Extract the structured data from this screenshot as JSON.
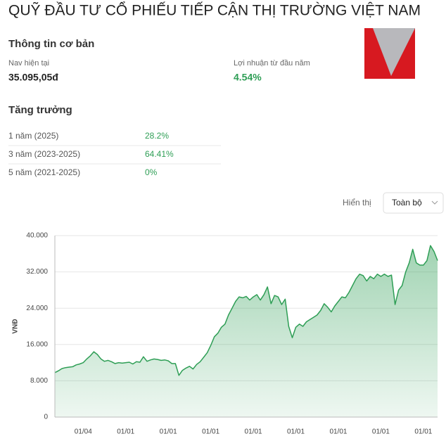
{
  "header": {
    "title": "QUỸ ĐẦU TƯ CỔ PHIẾU TIẾP CẬN THỊ TRƯỜNG VIỆT NAM"
  },
  "info": {
    "heading": "Thông tin cơ bản",
    "nav_label": "Nav hiện tại",
    "nav_value": "35.095,05đ",
    "return_label": "Lợi nhuận từ đầu năm",
    "return_value": "4.54%"
  },
  "growth": {
    "heading": "Tăng trưởng",
    "rows": [
      [
        "1 năm (2025)",
        "28.2%"
      ],
      [
        "3 năm (2023-2025)",
        "64.41%"
      ],
      [
        "5 năm (2021-2025)",
        "0%"
      ]
    ]
  },
  "filter": {
    "label": "Hiển thị",
    "value": "Toàn bộ"
  },
  "chart_data": {
    "type": "line",
    "ylabel": "VNĐ",
    "color": "#2e9e55",
    "grid": true,
    "ylim": [
      0,
      40000
    ],
    "yticks": [
      0,
      {
        "value": 8000,
        "label": "8.000"
      },
      {
        "value": 16000,
        "label": "16.000"
      },
      {
        "value": 24000,
        "label": "24.000"
      },
      {
        "value": 32000,
        "label": "32.000"
      },
      {
        "value": 40000,
        "label": "40.000"
      }
    ],
    "categories": [
      null,
      null,
      null,
      null,
      null,
      null,
      null,
      null,
      "01/04",
      null,
      null,
      null,
      null,
      null,
      null,
      null,
      null,
      null,
      null,
      null,
      "01/01",
      null,
      null,
      null,
      null,
      null,
      null,
      null,
      null,
      null,
      null,
      null,
      "01/01",
      null,
      null,
      null,
      null,
      null,
      null,
      null,
      null,
      null,
      null,
      null,
      "01/01",
      null,
      null,
      null,
      null,
      null,
      null,
      null,
      null,
      null,
      null,
      null,
      "01/01",
      null,
      null,
      null,
      null,
      null,
      null,
      null,
      null,
      null,
      null,
      null,
      "01/01",
      null,
      null,
      null,
      null,
      null,
      null,
      null,
      null,
      null,
      null,
      null,
      "01/01",
      null,
      null,
      null,
      null,
      null,
      null,
      null,
      null,
      null,
      null,
      null,
      "01/01",
      null,
      null,
      null,
      null,
      null,
      null,
      null,
      null,
      null,
      null,
      null,
      "01/01",
      null,
      null,
      null,
      null
    ],
    "values": [
      9800,
      10200,
      10700,
      10900,
      11000,
      11100,
      11500,
      11700,
      12000,
      12800,
      13500,
      14400,
      13800,
      12800,
      12300,
      12500,
      12200,
      11800,
      12000,
      11900,
      12000,
      12100,
      11700,
      12200,
      12100,
      13300,
      12300,
      12600,
      12800,
      12700,
      12500,
      12600,
      12400,
      11800,
      11800,
      9200,
      10300,
      10800,
      11200,
      10600,
      11600,
      12200,
      13200,
      14200,
      15800,
      17700,
      18500,
      19800,
      20500,
      22500,
      24000,
      25500,
      26500,
      26300,
      26600,
      25800,
      26500,
      27000,
      25800,
      27000,
      28700,
      25000,
      26800,
      26500,
      24800,
      26000,
      20000,
      17500,
      19800,
      20500,
      20000,
      21000,
      21500,
      22000,
      22500,
      23500,
      25000,
      24200,
      23200,
      24500,
      25500,
      26500,
      26300,
      27500,
      29000,
      30500,
      31500,
      31200,
      30000,
      31000,
      30500,
      31500,
      31000,
      31500,
      31000,
      31300,
      24800,
      28000,
      29000,
      32000,
      34000,
      37000,
      34000,
      33500,
      33500,
      34500,
      37800,
      36500,
      34500
    ]
  }
}
